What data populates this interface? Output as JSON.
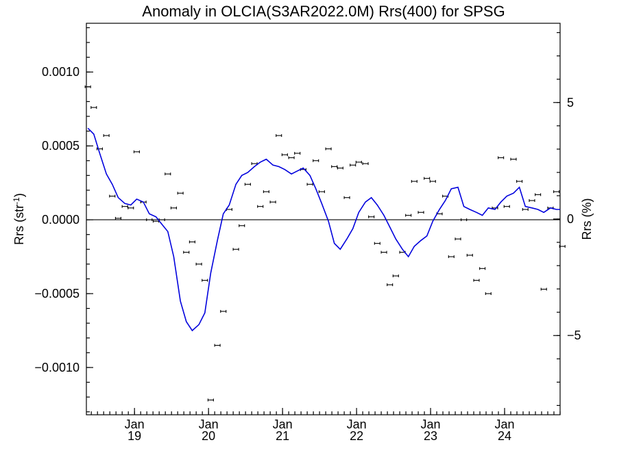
{
  "chart_data": {
    "type": "scatter",
    "title": "Anomaly in OLCIA(S3AR2022.0M) Rrs(400) for SPSG",
    "ylabel": "Rrs (str",
    "ylabel_sup": "-1",
    "ylabel_close": ")",
    "ylabel_right": "Rrs (%)",
    "ylim": [
      -0.00132,
      0.00133
    ],
    "ylim_right": [
      -8.4,
      8.4
    ],
    "xlim": [
      2018.35,
      2024.75
    ],
    "grid": false,
    "legend": "none",
    "yticks": [
      {
        "value": 0.001,
        "label": "0.0010"
      },
      {
        "value": 0.0005,
        "label": "0.0005"
      },
      {
        "value": 0.0,
        "label": "0.0000"
      },
      {
        "value": -0.0005,
        "label": "−0.0005"
      },
      {
        "value": -0.001,
        "label": "−0.0010"
      }
    ],
    "yticks_right": [
      {
        "value": 5,
        "label": "5"
      },
      {
        "value": 0,
        "label": "0"
      },
      {
        "value": -5,
        "label": "−5"
      }
    ],
    "xticks": [
      {
        "value": 2019.0,
        "month": "Jan",
        "year": "19"
      },
      {
        "value": 2020.0,
        "month": "Jan",
        "year": "20"
      },
      {
        "value": 2021.0,
        "month": "Jan",
        "year": "21"
      },
      {
        "value": 2022.0,
        "month": "Jan",
        "year": "22"
      },
      {
        "value": 2023.0,
        "month": "Jan",
        "year": "23"
      },
      {
        "value": 2024.0,
        "month": "Jan",
        "year": "24"
      }
    ],
    "colors": {
      "smoothed": "#0000dd",
      "points": "#000000",
      "zero_line": "#000000"
    },
    "series": [
      {
        "kind": "points_with_error_bars",
        "x": [
          2018.37,
          2018.45,
          2018.53,
          2018.62,
          2018.7,
          2018.78,
          2018.87,
          2018.95,
          2019.03,
          2019.12,
          2019.2,
          2019.29,
          2019.37,
          2019.45,
          2019.53,
          2019.62,
          2019.7,
          2019.78,
          2019.87,
          2019.95,
          2020.03,
          2020.12,
          2020.2,
          2020.28,
          2020.37,
          2020.45,
          2020.53,
          2020.62,
          2020.7,
          2020.78,
          2020.87,
          2020.95,
          2021.03,
          2021.12,
          2021.2,
          2021.28,
          2021.37,
          2021.45,
          2021.53,
          2021.62,
          2021.7,
          2021.78,
          2021.87,
          2021.95,
          2022.03,
          2022.12,
          2022.2,
          2022.28,
          2022.37,
          2022.45,
          2022.53,
          2022.62,
          2022.7,
          2022.78,
          2022.87,
          2022.95,
          2023.03,
          2023.12,
          2023.2,
          2023.28,
          2023.37,
          2023.45,
          2023.53,
          2023.62,
          2023.7,
          2023.78,
          2023.87,
          2023.95,
          2024.03,
          2024.12,
          2024.2,
          2024.28,
          2024.37,
          2024.45,
          2024.53,
          2024.62,
          2024.7,
          2024.78
        ],
        "y": [
          0.0009,
          0.00076,
          0.00048,
          0.00057,
          0.00016,
          1e-05,
          9e-05,
          8e-05,
          0.00046,
          0.00012,
          0.0,
          -1e-05,
          0.0,
          0.00031,
          8e-05,
          0.00018,
          -0.00022,
          -0.00015,
          -0.0003,
          -0.00041,
          -0.00122,
          -0.00085,
          -0.00062,
          7e-05,
          -0.0002,
          -4e-05,
          0.00024,
          0.00038,
          9e-05,
          0.00019,
          0.00012,
          0.00057,
          0.00044,
          0.00042,
          0.00045,
          0.00034,
          0.00024,
          0.0004,
          0.00019,
          0.00048,
          0.00036,
          0.00035,
          0.00015,
          0.00037,
          0.00039,
          0.00038,
          2e-05,
          -0.00016,
          -0.00022,
          -0.00044,
          -0.00038,
          -0.00022,
          3e-05,
          0.00026,
          5e-05,
          0.00028,
          0.00026,
          4e-05,
          0.00016,
          -0.00025,
          -0.00013,
          0.0,
          -0.00024,
          -0.00041,
          -0.00033,
          -0.0005,
          8e-05,
          0.00042,
          9e-05,
          0.00041,
          0.00026,
          7e-05,
          0.00013,
          0.00017,
          -0.00047,
          8e-05,
          0.00019,
          -0.00018
        ]
      },
      {
        "kind": "smoothed_line",
        "x": [
          2018.37,
          2018.45,
          2018.53,
          2018.62,
          2018.7,
          2018.78,
          2018.87,
          2018.95,
          2019.03,
          2019.12,
          2019.2,
          2019.29,
          2019.37,
          2019.45,
          2019.53,
          2019.62,
          2019.7,
          2019.78,
          2019.87,
          2019.95,
          2020.03,
          2020.12,
          2020.2,
          2020.28,
          2020.37,
          2020.45,
          2020.53,
          2020.62,
          2020.7,
          2020.78,
          2020.87,
          2020.95,
          2021.03,
          2021.12,
          2021.2,
          2021.28,
          2021.37,
          2021.45,
          2021.53,
          2021.62,
          2021.7,
          2021.78,
          2021.87,
          2021.95,
          2022.03,
          2022.12,
          2022.2,
          2022.28,
          2022.37,
          2022.45,
          2022.53,
          2022.62,
          2022.7,
          2022.78,
          2022.87,
          2022.95,
          2023.03,
          2023.12,
          2023.2,
          2023.28,
          2023.37,
          2023.45,
          2023.53,
          2023.62,
          2023.7,
          2023.78,
          2023.87,
          2023.95,
          2024.03,
          2024.12,
          2024.2,
          2024.28,
          2024.37,
          2024.45,
          2024.53,
          2024.62,
          2024.7,
          2024.75
        ],
        "y": [
          0.00062,
          0.00058,
          0.00045,
          0.00031,
          0.00024,
          0.00015,
          0.00011,
          0.0001,
          0.00014,
          0.00012,
          4e-05,
          2e-05,
          -3e-05,
          -8e-05,
          -0.00025,
          -0.00055,
          -0.00069,
          -0.00075,
          -0.00071,
          -0.00063,
          -0.00036,
          -0.00014,
          4e-05,
          0.0001,
          0.00024,
          0.0003,
          0.00032,
          0.00036,
          0.00039,
          0.00041,
          0.00037,
          0.00036,
          0.00034,
          0.00031,
          0.00033,
          0.00035,
          0.0003,
          0.00021,
          0.00011,
          -1e-05,
          -0.00016,
          -0.0002,
          -0.00013,
          -6e-05,
          5e-05,
          0.00012,
          0.00015,
          0.0001,
          3e-05,
          -5e-05,
          -0.00013,
          -0.0002,
          -0.00025,
          -0.00018,
          -0.00014,
          -0.00011,
          -1e-05,
          7e-05,
          0.00013,
          0.00021,
          0.00022,
          9e-05,
          7e-05,
          5e-05,
          3e-05,
          8e-05,
          7e-05,
          0.00012,
          0.00016,
          0.00018,
          0.00022,
          9e-05,
          8e-05,
          7e-05,
          5e-05,
          8e-05,
          7e-05,
          7e-05
        ]
      }
    ]
  }
}
